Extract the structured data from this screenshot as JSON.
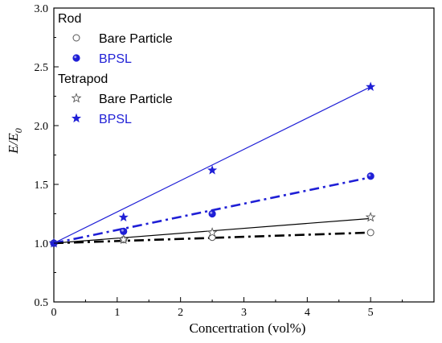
{
  "chart_data": {
    "type": "scatter",
    "xlabel": "Concertration (vol%)",
    "ylabel": "E/E",
    "ylabel_subscript": "0",
    "xlim": [
      0,
      6
    ],
    "ylim": [
      0.5,
      3.0
    ],
    "xticks": [
      "0",
      "1",
      "2",
      "3",
      "4",
      "5"
    ],
    "xtick_values": [
      0,
      1,
      2,
      3,
      4,
      5
    ],
    "yticks": [
      "0.5",
      "1.0",
      "1.5",
      "2.0",
      "2.5",
      "3.0"
    ],
    "ytick_values": [
      0.5,
      1.0,
      1.5,
      2.0,
      2.5,
      3.0
    ],
    "grid": false,
    "legend_position": "top-left",
    "legend_groups": [
      {
        "title": "Rod",
        "entries": [
          "Bare Particle",
          "BPSL"
        ]
      },
      {
        "title": "Tetrapod",
        "entries": [
          "Bare Particle",
          "BPSL"
        ]
      }
    ],
    "series": [
      {
        "name": "Bare Particle",
        "group": "Rod",
        "marker": "open-circle",
        "color": "#555555",
        "line_color": "#000000",
        "line": "dash-dot",
        "x": [
          0,
          1.1,
          2.5,
          5.0
        ],
        "y": [
          1.0,
          1.03,
          1.05,
          1.09
        ],
        "fit": {
          "x": [
            0,
            5.0
          ],
          "y": [
            1.0,
            1.09
          ]
        }
      },
      {
        "name": "BPSL",
        "group": "Rod",
        "marker": "filled-circle",
        "color": "#1f1fd6",
        "line_color": "#1f1fd6",
        "line": "dash-dot",
        "x": [
          0,
          1.1,
          2.5,
          5.0
        ],
        "y": [
          1.0,
          1.1,
          1.25,
          1.57
        ],
        "fit": {
          "x": [
            0,
            5.0
          ],
          "y": [
            1.0,
            1.56
          ]
        }
      },
      {
        "name": "Bare Particle",
        "group": "Tetrapod",
        "marker": "open-star",
        "color": "#555555",
        "line_color": "#000000",
        "line": "solid",
        "x": [
          0,
          1.1,
          2.5,
          5.0
        ],
        "y": [
          1.0,
          1.03,
          1.09,
          1.22
        ],
        "fit": {
          "x": [
            0,
            5.0
          ],
          "y": [
            1.0,
            1.21
          ]
        }
      },
      {
        "name": "BPSL",
        "group": "Tetrapod",
        "marker": "filled-star",
        "color": "#1f1fd6",
        "line_color": "#1f1fd6",
        "line": "solid",
        "x": [
          0,
          1.1,
          2.5,
          5.0
        ],
        "y": [
          1.0,
          1.22,
          1.62,
          2.33
        ],
        "fit": {
          "x": [
            0,
            5.0
          ],
          "y": [
            1.0,
            2.33
          ]
        }
      }
    ]
  }
}
